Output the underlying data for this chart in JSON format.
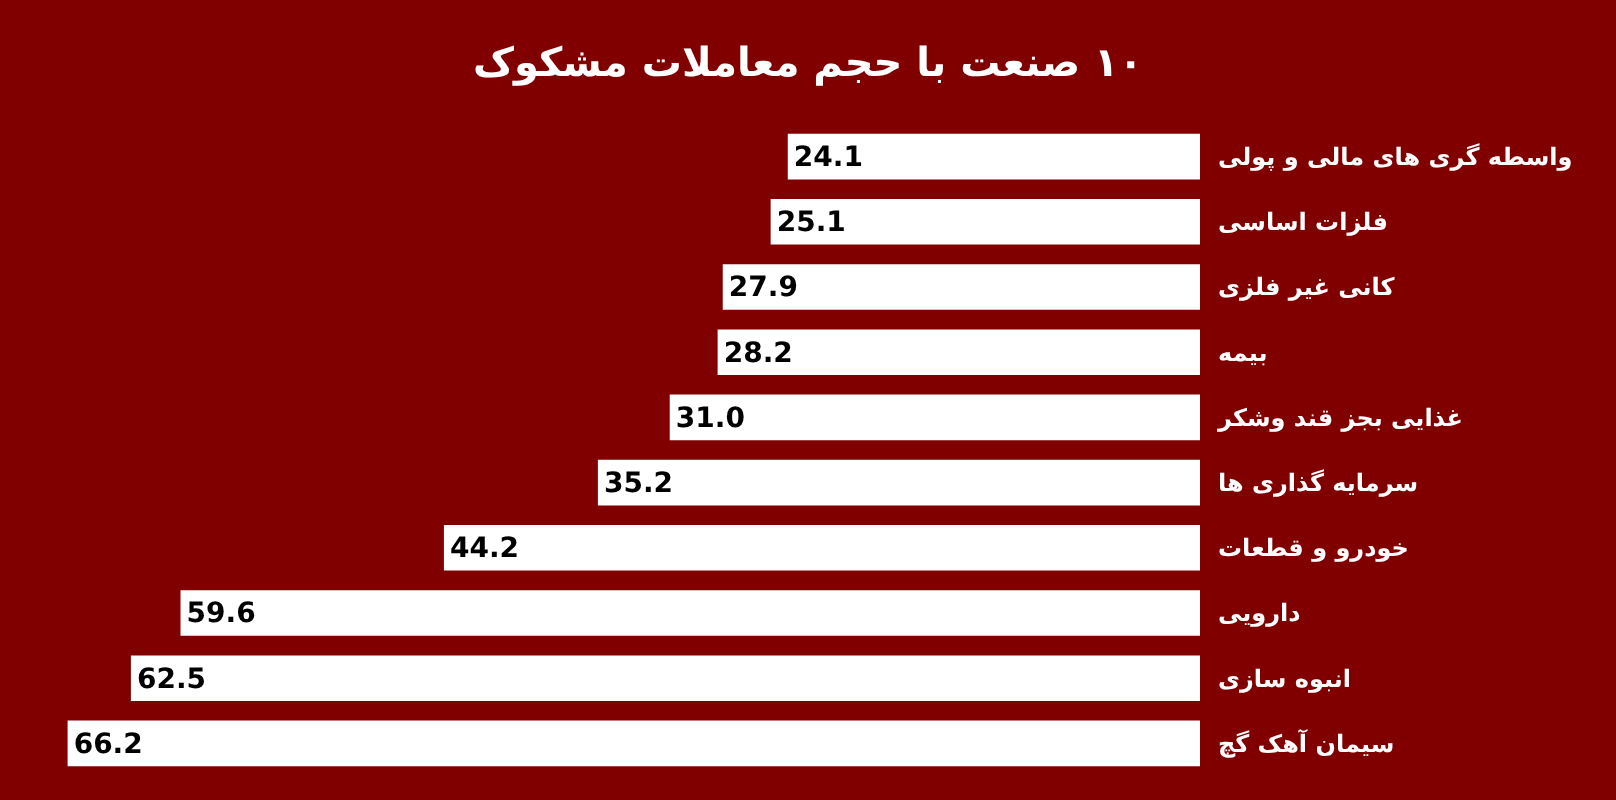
{
  "chart_data": {
    "type": "bar",
    "orientation": "horizontal",
    "title": "۱۰ صنعت با حجم معاملات مشکوک",
    "categories": [
      "واسطه گری های مالی و پولی",
      "فلزات اساسی",
      "کانی غیر فلزی",
      "بیمه",
      "غذایی بجز قند وشکر",
      "سرمایه گذاری ها",
      "خودرو و قطعات",
      "دارویی",
      "انبوه سازی",
      "سیمان آهک گچ"
    ],
    "values": [
      24.1,
      25.1,
      27.9,
      28.2,
      31.0,
      35.2,
      44.2,
      59.6,
      62.5,
      66.2
    ],
    "value_labels": [
      "24.1",
      "25.1",
      "27.9",
      "28.2",
      "31.0",
      "35.2",
      "44.2",
      "59.6",
      "62.5",
      "66.2"
    ],
    "color": "#ffffff",
    "tick_labels": "y"
  }
}
